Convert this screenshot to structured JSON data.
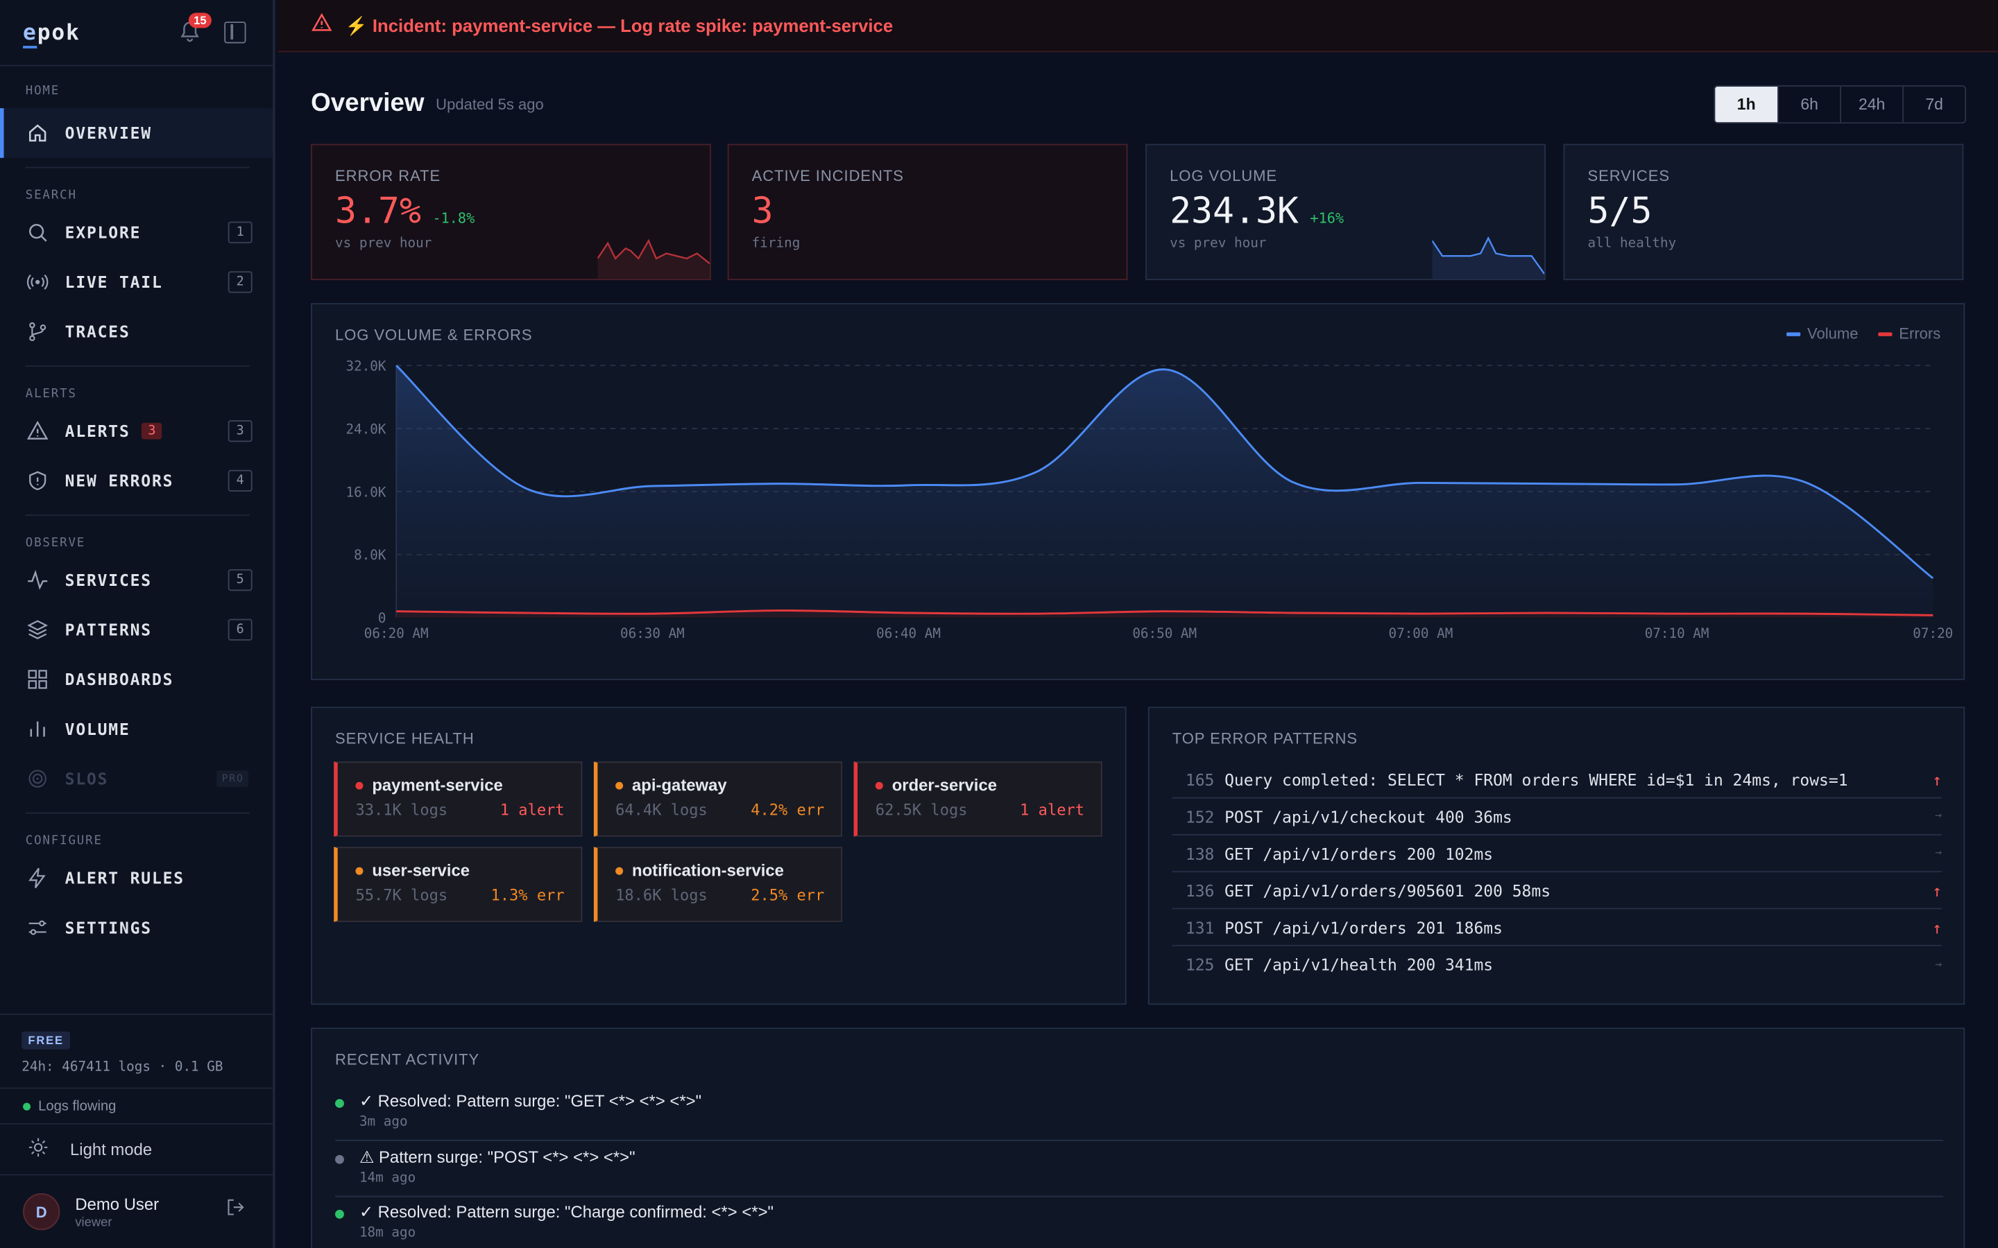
{
  "app": {
    "logo": "epok",
    "notifications_count": "15"
  },
  "sidebar": {
    "sections": [
      {
        "label": "HOME"
      },
      {
        "label": "SEARCH"
      },
      {
        "label": "ALERTS"
      },
      {
        "label": "OBSERVE"
      },
      {
        "label": "CONFIGURE"
      }
    ],
    "items": [
      {
        "label": "OVERVIEW",
        "icon": "home-icon"
      },
      {
        "label": "EXPLORE",
        "icon": "search-icon",
        "key": "1"
      },
      {
        "label": "LIVE TAIL",
        "icon": "broadcast-icon",
        "key": "2"
      },
      {
        "label": "TRACES",
        "icon": "branch-icon"
      },
      {
        "label": "ALERTS",
        "icon": "warning-icon",
        "count": "3",
        "key": "3"
      },
      {
        "label": "NEW ERRORS",
        "icon": "shield-icon",
        "key": "4"
      },
      {
        "label": "SERVICES",
        "icon": "pulse-icon",
        "key": "5"
      },
      {
        "label": "PATTERNS",
        "icon": "layers-icon",
        "key": "6"
      },
      {
        "label": "DASHBOARDS",
        "icon": "grid-icon"
      },
      {
        "label": "VOLUME",
        "icon": "bar-chart-icon"
      },
      {
        "label": "SLOS",
        "icon": "target-icon",
        "badge": "PRO"
      },
      {
        "label": "ALERT RULES",
        "icon": "bolt-icon"
      },
      {
        "label": "SETTINGS",
        "icon": "sliders-icon"
      }
    ],
    "plan": {
      "badge": "FREE",
      "usage": "24h: 467411 logs · 0.1 GB"
    },
    "status": "Logs flowing",
    "theme_toggle": "Light mode",
    "user": {
      "initial": "D",
      "name": "Demo User",
      "role": "viewer"
    }
  },
  "banner": {
    "text": "⚡ Incident: payment-service — Log rate spike: payment-service"
  },
  "header": {
    "title": "Overview",
    "updated": "Updated 5s ago",
    "ranges": [
      "1h",
      "6h",
      "24h",
      "7d"
    ]
  },
  "cards": [
    {
      "title": "ERROR RATE",
      "value": "3.7%",
      "delta": "-1.8%",
      "sub": "vs prev hour",
      "color": "#ff5a5a",
      "delta_color": "#2ec26a"
    },
    {
      "title": "ACTIVE INCIDENTS",
      "value": "3",
      "delta": "",
      "sub": "firing",
      "color": "#ff5a5a"
    },
    {
      "title": "LOG VOLUME",
      "value": "234.3K",
      "delta": "+16%",
      "sub": "vs prev hour",
      "color": "#f1f3f7",
      "delta_color": "#2ec26a"
    },
    {
      "title": "SERVICES",
      "value": "5/5",
      "delta": "",
      "sub": "all healthy",
      "color": "#f1f3f7"
    }
  ],
  "chart_panel": {
    "title": "LOG VOLUME & ERRORS"
  },
  "chart_data": {
    "type": "area",
    "x": [
      "06:20 AM",
      "06:25",
      "06:30 AM",
      "06:35",
      "06:40 AM",
      "06:45",
      "06:50 AM",
      "06:55",
      "07:00 AM",
      "07:05",
      "07:10 AM",
      "07:15",
      "07:20"
    ],
    "x_ticks": [
      "06:20 AM",
      "06:30 AM",
      "06:40 AM",
      "06:50 AM",
      "07:00 AM",
      "07:10 AM",
      "07:20"
    ],
    "series": [
      {
        "name": "Volume",
        "color": "#4c8bf5",
        "values": [
          32000,
          16500,
          16700,
          17000,
          16800,
          18500,
          31500,
          17200,
          17100,
          17000,
          16900,
          17200,
          5000
        ]
      },
      {
        "name": "Errors",
        "color": "#e5383b",
        "values": [
          800,
          600,
          500,
          900,
          600,
          500,
          800,
          600,
          500,
          600,
          500,
          500,
          300
        ]
      }
    ],
    "ylim": [
      0,
      32000
    ],
    "y_ticks": [
      "0",
      "8.0K",
      "16.0K",
      "24.0K",
      "32.0K"
    ],
    "grid": true,
    "legend": "top-right"
  },
  "service_health": {
    "title": "SERVICE HEALTH",
    "services": [
      {
        "name": "payment-service",
        "logs": "33.1K logs",
        "status": "1 alert"
      },
      {
        "name": "api-gateway",
        "logs": "64.4K logs",
        "status": "4.2% err"
      },
      {
        "name": "order-service",
        "logs": "62.5K logs",
        "status": "1 alert"
      },
      {
        "name": "user-service",
        "logs": "55.7K logs",
        "status": "1.3% err"
      },
      {
        "name": "notification-service",
        "logs": "18.6K logs",
        "status": "2.5% err"
      }
    ]
  },
  "error_patterns": {
    "title": "TOP ERROR PATTERNS",
    "rows": [
      {
        "count": "165",
        "text": "Query completed: SELECT * FROM orders WHERE id=$1 in 24ms, rows=1",
        "trend": "↑"
      },
      {
        "count": "152",
        "text": "POST /api/v1/checkout 400 36ms",
        "trend": "→"
      },
      {
        "count": "138",
        "text": "GET /api/v1/orders 200 102ms",
        "trend": "→"
      },
      {
        "count": "136",
        "text": "GET /api/v1/orders/905601 200 58ms",
        "trend": "↑"
      },
      {
        "count": "131",
        "text": "POST /api/v1/orders 201 186ms",
        "trend": "↑"
      },
      {
        "count": "125",
        "text": "GET /api/v1/health 200 341ms",
        "trend": "→"
      }
    ]
  },
  "activity": {
    "title": "RECENT ACTIVITY",
    "items": [
      {
        "text": "✓ Resolved: Pattern surge: \"GET <*> <*> <*>\"",
        "time": "3m ago"
      },
      {
        "text": "⚠ Pattern surge: \"POST <*> <*> <*>\"",
        "time": "14m ago"
      },
      {
        "text": "✓ Resolved: Pattern surge: \"Charge confirmed: <*> <*>\"",
        "time": "18m ago"
      }
    ]
  }
}
